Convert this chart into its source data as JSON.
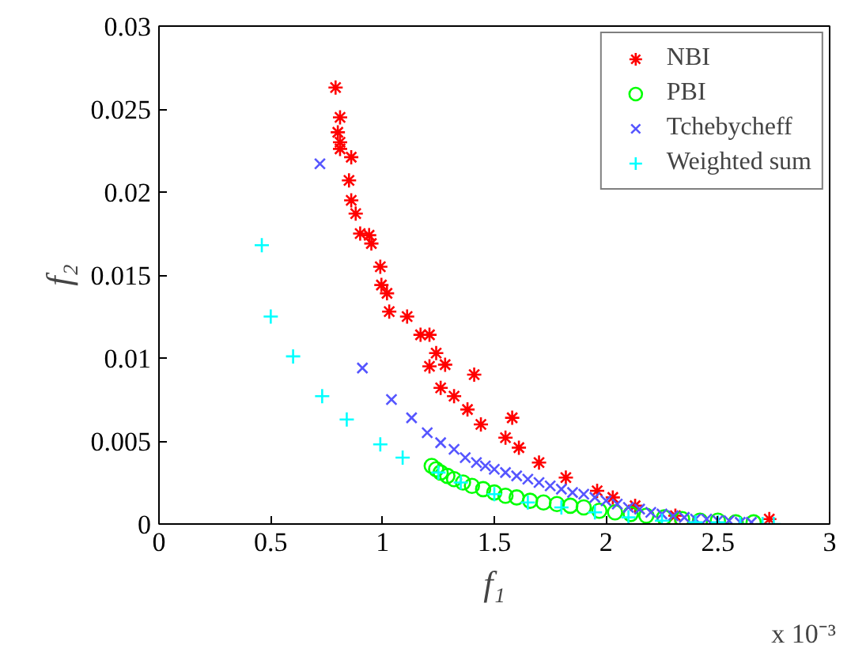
{
  "chart_data": {
    "type": "scatter",
    "xlabel": "f₁",
    "ylabel": "f₂",
    "annotations": [
      "x 10⁻³"
    ],
    "xlim": [
      0,
      3
    ],
    "ylim": [
      0,
      0.03
    ],
    "xticks": [
      0,
      0.5,
      1,
      1.5,
      2,
      2.5,
      3
    ],
    "yticks": [
      0,
      0.005,
      0.01,
      0.015,
      0.02,
      0.025,
      0.03
    ],
    "grid": false,
    "legend": "top right",
    "series": [
      {
        "name": "NBI",
        "color": "#ff0000",
        "x": [
          0.79,
          0.81,
          0.8,
          0.81,
          0.81,
          0.86,
          0.85,
          0.86,
          0.88,
          0.9,
          0.94,
          0.95,
          0.99,
          0.995,
          1.02,
          1.03,
          1.11,
          1.17,
          1.21,
          1.24,
          1.28,
          1.21,
          1.41,
          1.26,
          1.32,
          1.38,
          1.44,
          1.58,
          1.55,
          1.61,
          1.7,
          1.82,
          1.96,
          2.03,
          2.13,
          2.31,
          2.73
        ],
        "values": [
          0.0263,
          0.0245,
          0.0236,
          0.023,
          0.0226,
          0.0221,
          0.0207,
          0.0195,
          0.0187,
          0.0175,
          0.0174,
          0.0169,
          0.0155,
          0.0144,
          0.0139,
          0.0128,
          0.0125,
          0.0114,
          0.0114,
          0.0103,
          0.0096,
          0.0095,
          0.009,
          0.0082,
          0.0077,
          0.0069,
          0.006,
          0.0064,
          0.0052,
          0.0046,
          0.0037,
          0.0028,
          0.002,
          0.0016,
          0.0011,
          0.0005,
          0.0003
        ]
      },
      {
        "name": "PBI",
        "color": "#00ff00",
        "marker": "circle",
        "x": [
          1.22,
          1.24,
          1.26,
          1.29,
          1.32,
          1.36,
          1.4,
          1.45,
          1.5,
          1.55,
          1.6,
          1.66,
          1.72,
          1.78,
          1.84,
          1.9,
          1.97,
          2.04,
          2.11,
          2.18,
          2.26,
          2.34,
          2.42,
          2.5,
          2.58,
          2.66
        ],
        "values": [
          0.0035,
          0.0033,
          0.0031,
          0.0029,
          0.0027,
          0.0025,
          0.0023,
          0.0021,
          0.0019,
          0.0017,
          0.0016,
          0.0014,
          0.0013,
          0.0012,
          0.0011,
          0.001,
          0.0008,
          0.0007,
          0.0006,
          0.0005,
          0.0004,
          0.0003,
          0.0002,
          0.0002,
          0.0001,
          0.0001
        ]
      },
      {
        "name": "Tchebycheff",
        "color": "#5555ff",
        "marker": "x",
        "x": [
          0.72,
          0.91,
          1.04,
          1.13,
          1.2,
          1.26,
          1.32,
          1.37,
          1.42,
          1.46,
          1.5,
          1.55,
          1.6,
          1.65,
          1.7,
          1.75,
          1.8,
          1.85,
          1.9,
          1.95,
          2.0,
          2.05,
          2.1,
          2.15,
          2.2,
          2.25,
          2.3,
          2.35,
          2.4,
          2.45,
          2.5,
          2.55,
          2.6,
          2.65
        ],
        "values": [
          0.0217,
          0.0094,
          0.0075,
          0.0064,
          0.0055,
          0.0049,
          0.0045,
          0.004,
          0.0037,
          0.0035,
          0.0033,
          0.0031,
          0.0029,
          0.0027,
          0.0025,
          0.0023,
          0.0021,
          0.0019,
          0.0018,
          0.0016,
          0.0014,
          0.0012,
          0.001,
          0.0009,
          0.0007,
          0.0006,
          0.0005,
          0.0004,
          0.0003,
          0.0003,
          0.0002,
          0.0002,
          0.0001,
          0.0001
        ]
      },
      {
        "name": "Weighted sum",
        "color": "#00ffff",
        "marker": "cross",
        "x": [
          0.46,
          0.5,
          0.6,
          0.73,
          0.84,
          0.99,
          1.09,
          1.25,
          1.35,
          1.5,
          1.65,
          1.8,
          1.95,
          2.1,
          2.25,
          2.4,
          2.5,
          2.6,
          2.7,
          2.75
        ],
        "values": [
          0.0168,
          0.0125,
          0.0101,
          0.0077,
          0.0063,
          0.0048,
          0.004,
          0.0031,
          0.0025,
          0.0018,
          0.0013,
          0.001,
          0.0007,
          0.0004,
          0.0002,
          0.0001,
          0.0001,
          0,
          0,
          0
        ]
      }
    ]
  }
}
